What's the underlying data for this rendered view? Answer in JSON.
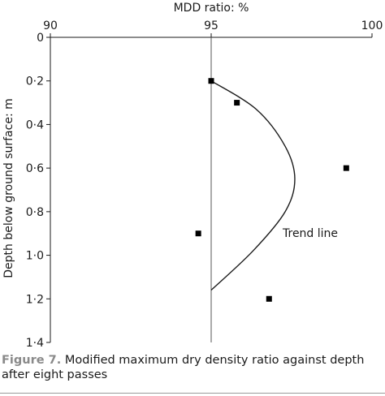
{
  "chart_data": {
    "type": "scatter",
    "xlabel": "MDD ratio: %",
    "ylabel": "Depth below ground surface: m",
    "xlim": [
      90,
      100
    ],
    "ylim": [
      0,
      1.4
    ],
    "x_ticks": [
      "90",
      "95",
      "100"
    ],
    "y_ticks": [
      "0",
      "0·2",
      "0·4",
      "0·6",
      "0·8",
      "1·0",
      "1·2",
      "1·4"
    ],
    "x_axis_position": "top",
    "grid": false,
    "reference_line": {
      "x": 95
    },
    "points": [
      {
        "x": 95.0,
        "y": 0.2
      },
      {
        "x": 95.8,
        "y": 0.3
      },
      {
        "x": 99.2,
        "y": 0.6
      },
      {
        "x": 94.6,
        "y": 0.9
      },
      {
        "x": 96.8,
        "y": 1.2
      }
    ],
    "trend_line": {
      "label": "Trend line",
      "points": [
        {
          "x": 95.0,
          "y": 0.2
        },
        {
          "x": 96.4,
          "y": 0.33
        },
        {
          "x": 97.3,
          "y": 0.5
        },
        {
          "x": 97.6,
          "y": 0.65
        },
        {
          "x": 97.3,
          "y": 0.8
        },
        {
          "x": 96.3,
          "y": 0.98
        },
        {
          "x": 95.0,
          "y": 1.16
        }
      ]
    }
  },
  "caption": {
    "figure_label": "Figure 7.",
    "text": "Modified maximum dry density ratio against depth after eight passes"
  }
}
